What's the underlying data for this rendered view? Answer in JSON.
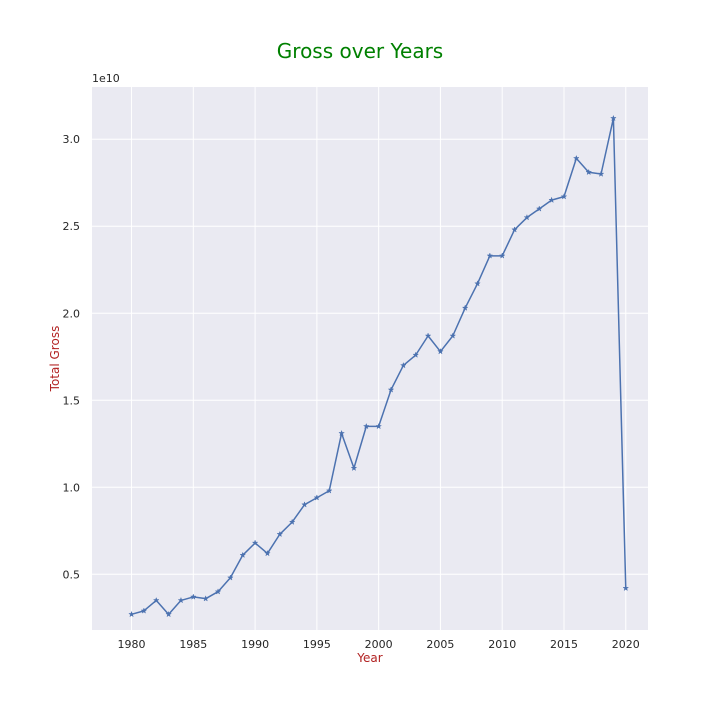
{
  "chart_data": {
    "type": "line",
    "title": "Gross over Years",
    "xlabel": "Year",
    "ylabel": "Total Gross",
    "y_multiplier_label": "1e10",
    "colors": {
      "title": "#008000",
      "axis_label": "#b22222",
      "line": "#4c72b0",
      "plot_bg": "#eaeaf2",
      "grid": "#ffffff"
    },
    "grid": true,
    "marker": "star",
    "xlim": [
      1976.8,
      2021.8
    ],
    "ylim": [
      0.18,
      3.3
    ],
    "x_ticks": [
      1980,
      1985,
      1990,
      1995,
      2000,
      2005,
      2010,
      2015,
      2020
    ],
    "y_ticks": [
      0.5,
      1.0,
      1.5,
      2.0,
      2.5,
      3.0
    ],
    "y_tick_labels": [
      "0.5",
      "1.0",
      "1.5",
      "2.0",
      "2.5",
      "3.0"
    ],
    "series": [
      {
        "x": [
          1980,
          1981,
          1982,
          1983,
          1984,
          1985,
          1986,
          1987,
          1988,
          1989,
          1990,
          1991,
          1992,
          1993,
          1994,
          1995,
          1996,
          1997,
          1998,
          1999,
          2000,
          2001,
          2002,
          2003,
          2004,
          2005,
          2006,
          2007,
          2008,
          2009,
          2010,
          2011,
          2012,
          2013,
          2014,
          2015,
          2016,
          2017,
          2018,
          2019,
          2020
        ],
        "values": [
          0.27,
          0.29,
          0.35,
          0.27,
          0.35,
          0.37,
          0.36,
          0.4,
          0.48,
          0.61,
          0.68,
          0.62,
          0.73,
          0.8,
          0.9,
          0.94,
          0.98,
          1.31,
          1.11,
          1.35,
          1.35,
          1.56,
          1.7,
          1.76,
          1.87,
          1.78,
          1.87,
          2.03,
          2.17,
          2.33,
          2.33,
          2.48,
          2.55,
          2.6,
          2.65,
          2.67,
          2.89,
          2.81,
          2.8,
          3.12,
          0.42
        ]
      }
    ]
  }
}
